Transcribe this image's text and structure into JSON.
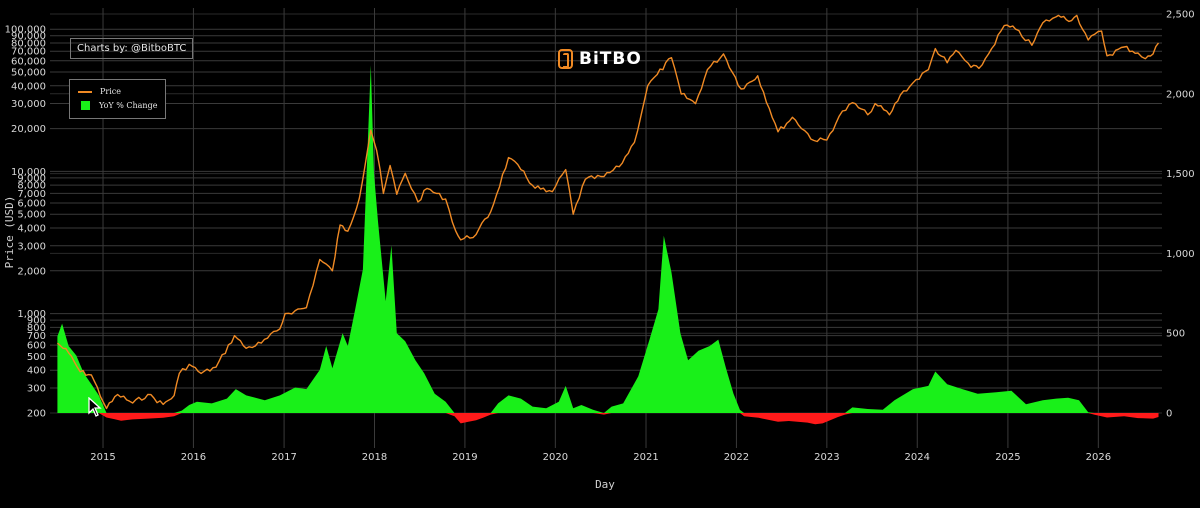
{
  "header": {
    "credit": "Charts by: @BitboBTC",
    "brand": "BiTBO"
  },
  "legend": {
    "price": "Price",
    "yoy": "YoY % Change"
  },
  "colors": {
    "background": "#000000",
    "price": "#f08a24",
    "positive": "#19f019",
    "negative": "#ff1a1a",
    "grid": "#3a3a3a"
  },
  "chart_data": {
    "type": "line",
    "title": "",
    "xlabel": "Day",
    "ylabel": "Price (USD)",
    "y2label": "",
    "x_ticks": [
      "2015",
      "2016",
      "2017",
      "2018",
      "2019",
      "2020",
      "2021",
      "2022",
      "2023",
      "2024",
      "2025",
      "2026"
    ],
    "y_scale": "log",
    "y_ticks": [
      "200",
      "300",
      "400",
      "500",
      "600",
      "700",
      "800",
      "900",
      "1,000",
      "2,000",
      "3,000",
      "4,000",
      "5,000",
      "6,000",
      "7,000",
      "8,000",
      "9,000",
      "10,000",
      "20,000",
      "30,000",
      "40,000",
      "50,000",
      "60,000",
      "70,000",
      "80,000",
      "90,000",
      "100,000"
    ],
    "y_tick_values": [
      200,
      300,
      400,
      500,
      600,
      700,
      800,
      900,
      1000,
      2000,
      3000,
      4000,
      5000,
      6000,
      7000,
      8000,
      9000,
      10000,
      20000,
      30000,
      40000,
      50000,
      60000,
      70000,
      80000,
      90000,
      100000
    ],
    "y2_ticks": [
      "0",
      "500",
      "1,000",
      "1,500",
      "2,000",
      "2,500"
    ],
    "y2_tick_values": [
      0,
      500,
      1000,
      1500,
      2000,
      2500
    ],
    "ylim": [
      200,
      130000
    ],
    "y2lim": [
      -50,
      2500
    ],
    "series": [
      {
        "name": "Price",
        "axis": "left",
        "points": [
          [
            "2014-07-01",
            620
          ],
          [
            "2014-08-15",
            530
          ],
          [
            "2014-10-01",
            390
          ],
          [
            "2014-11-15",
            370
          ],
          [
            "2015-01-15",
            215
          ],
          [
            "2015-03-01",
            270
          ],
          [
            "2015-05-01",
            235
          ],
          [
            "2015-07-01",
            270
          ],
          [
            "2015-09-01",
            230
          ],
          [
            "2015-10-15",
            265
          ],
          [
            "2015-11-05",
            380
          ],
          [
            "2015-12-15",
            440
          ],
          [
            "2016-02-01",
            380
          ],
          [
            "2016-04-01",
            420
          ],
          [
            "2016-06-15",
            700
          ],
          [
            "2016-08-01",
            570
          ],
          [
            "2016-10-01",
            620
          ],
          [
            "2016-12-15",
            780
          ],
          [
            "2017-01-05",
            1000
          ],
          [
            "2017-02-15",
            1050
          ],
          [
            "2017-04-01",
            1100
          ],
          [
            "2017-05-25",
            2400
          ],
          [
            "2017-07-15",
            2000
          ],
          [
            "2017-08-15",
            4200
          ],
          [
            "2017-09-15",
            3800
          ],
          [
            "2017-11-01",
            6500
          ],
          [
            "2017-12-17",
            19500
          ],
          [
            "2018-01-10",
            14000
          ],
          [
            "2018-02-06",
            7000
          ],
          [
            "2018-03-05",
            11000
          ],
          [
            "2018-04-01",
            6900
          ],
          [
            "2018-05-05",
            9700
          ],
          [
            "2018-06-25",
            6100
          ],
          [
            "2018-08-01",
            7600
          ],
          [
            "2018-10-15",
            6400
          ],
          [
            "2018-11-25",
            3800
          ],
          [
            "2018-12-15",
            3300
          ],
          [
            "2019-02-15",
            3600
          ],
          [
            "2019-04-15",
            5200
          ],
          [
            "2019-06-26",
            12500
          ],
          [
            "2019-08-15",
            10300
          ],
          [
            "2019-09-30",
            8000
          ],
          [
            "2019-11-25",
            7200
          ],
          [
            "2019-12-20",
            7200
          ],
          [
            "2020-02-12",
            10300
          ],
          [
            "2020-03-13",
            5000
          ],
          [
            "2020-05-01",
            8800
          ],
          [
            "2020-07-15",
            9200
          ],
          [
            "2020-09-15",
            10800
          ],
          [
            "2020-11-15",
            16000
          ],
          [
            "2021-01-08",
            40000
          ],
          [
            "2021-02-15",
            48000
          ],
          [
            "2021-04-14",
            63000
          ],
          [
            "2021-05-23",
            35000
          ],
          [
            "2021-07-20",
            30000
          ],
          [
            "2021-09-06",
            52000
          ],
          [
            "2021-11-10",
            67000
          ],
          [
            "2022-01-20",
            38000
          ],
          [
            "2022-03-28",
            47000
          ],
          [
            "2022-06-18",
            19000
          ],
          [
            "2022-08-15",
            24000
          ],
          [
            "2022-11-10",
            16500
          ],
          [
            "2023-01-01",
            16600
          ],
          [
            "2023-02-20",
            24500
          ],
          [
            "2023-04-14",
            30400
          ],
          [
            "2023-06-15",
            25000
          ],
          [
            "2023-07-15",
            30000
          ],
          [
            "2023-09-11",
            25000
          ],
          [
            "2023-10-25",
            34500
          ],
          [
            "2023-12-15",
            42000
          ],
          [
            "2024-02-15",
            52000
          ],
          [
            "2024-03-14",
            73000
          ],
          [
            "2024-05-01",
            58000
          ],
          [
            "2024-06-05",
            71000
          ],
          [
            "2024-08-05",
            54000
          ],
          [
            "2024-09-06",
            53000
          ],
          [
            "2024-10-15",
            67000
          ],
          [
            "2024-12-17",
            106000
          ],
          [
            "2025-02-01",
            100000
          ],
          [
            "2025-04-08",
            77000
          ],
          [
            "2025-05-22",
            111000
          ],
          [
            "2025-07-14",
            122000
          ],
          [
            "2025-08-14",
            123000
          ],
          [
            "2025-09-15",
            115000
          ],
          [
            "2025-10-06",
            125000
          ],
          [
            "2025-11-21",
            84000
          ],
          [
            "2026-01-14",
            97000
          ],
          [
            "2026-02-05",
            65000
          ],
          [
            "2026-04-15",
            75000
          ],
          [
            "2026-06-10",
            68000
          ],
          [
            "2026-07-10",
            62000
          ],
          [
            "2026-08-10",
            67000
          ],
          [
            "2026-09-01",
            80000
          ]
        ]
      },
      {
        "name": "YoY % Change",
        "axis": "right",
        "type": "area",
        "points": [
          [
            "2014-07-01",
            480
          ],
          [
            "2014-07-20",
            560
          ],
          [
            "2014-08-15",
            420
          ],
          [
            "2014-09-15",
            360
          ],
          [
            "2014-10-15",
            250
          ],
          [
            "2014-11-15",
            180
          ],
          [
            "2014-12-15",
            110
          ],
          [
            "2015-01-15",
            -28
          ],
          [
            "2015-02-15",
            -38
          ],
          [
            "2015-03-15",
            -48
          ],
          [
            "2015-05-01",
            -40
          ],
          [
            "2015-07-01",
            -35
          ],
          [
            "2015-09-01",
            -30
          ],
          [
            "2015-10-15",
            -20
          ],
          [
            "2015-11-15",
            15
          ],
          [
            "2015-12-15",
            50
          ],
          [
            "2016-01-15",
            70
          ],
          [
            "2016-03-15",
            60
          ],
          [
            "2016-05-15",
            90
          ],
          [
            "2016-06-20",
            150
          ],
          [
            "2016-08-01",
            110
          ],
          [
            "2016-10-15",
            80
          ],
          [
            "2016-12-15",
            110
          ],
          [
            "2017-02-15",
            160
          ],
          [
            "2017-04-01",
            150
          ],
          [
            "2017-05-25",
            270
          ],
          [
            "2017-06-20",
            420
          ],
          [
            "2017-07-15",
            280
          ],
          [
            "2017-08-25",
            500
          ],
          [
            "2017-09-15",
            420
          ],
          [
            "2017-10-15",
            650
          ],
          [
            "2017-11-15",
            900
          ],
          [
            "2017-12-17",
            2180
          ],
          [
            "2017-12-30",
            1500
          ],
          [
            "2018-01-15",
            1200
          ],
          [
            "2018-02-15",
            700
          ],
          [
            "2018-03-10",
            1050
          ],
          [
            "2018-04-01",
            500
          ],
          [
            "2018-05-05",
            450
          ],
          [
            "2018-06-15",
            330
          ],
          [
            "2018-07-20",
            250
          ],
          [
            "2018-09-01",
            120
          ],
          [
            "2018-10-15",
            70
          ],
          [
            "2018-11-20",
            -20
          ],
          [
            "2018-12-15",
            -65
          ],
          [
            "2019-01-15",
            -55
          ],
          [
            "2019-02-15",
            -45
          ],
          [
            "2019-03-15",
            -30
          ],
          [
            "2019-04-15",
            -10
          ],
          [
            "2019-05-15",
            60
          ],
          [
            "2019-06-26",
            110
          ],
          [
            "2019-08-15",
            90
          ],
          [
            "2019-10-01",
            40
          ],
          [
            "2019-11-25",
            30
          ],
          [
            "2020-01-15",
            70
          ],
          [
            "2020-02-12",
            170
          ],
          [
            "2020-03-13",
            30
          ],
          [
            "2020-04-15",
            50
          ],
          [
            "2020-06-01",
            20
          ],
          [
            "2020-07-15",
            -10
          ],
          [
            "2020-08-15",
            40
          ],
          [
            "2020-10-01",
            60
          ],
          [
            "2020-12-01",
            230
          ],
          [
            "2021-01-15",
            460
          ],
          [
            "2021-02-20",
            650
          ],
          [
            "2021-03-14",
            1110
          ],
          [
            "2021-04-14",
            880
          ],
          [
            "2021-05-20",
            500
          ],
          [
            "2021-06-20",
            330
          ],
          [
            "2021-08-01",
            390
          ],
          [
            "2021-09-15",
            420
          ],
          [
            "2021-10-20",
            460
          ],
          [
            "2021-11-20",
            280
          ],
          [
            "2021-12-20",
            120
          ],
          [
            "2022-01-15",
            20
          ],
          [
            "2022-02-01",
            -20
          ],
          [
            "2022-04-01",
            -30
          ],
          [
            "2022-06-18",
            -55
          ],
          [
            "2022-08-01",
            -50
          ],
          [
            "2022-10-15",
            -60
          ],
          [
            "2022-11-15",
            -70
          ],
          [
            "2022-12-15",
            -65
          ],
          [
            "2023-02-15",
            -25
          ],
          [
            "2023-03-15",
            -10
          ],
          [
            "2023-04-14",
            35
          ],
          [
            "2023-06-15",
            25
          ],
          [
            "2023-08-15",
            20
          ],
          [
            "2023-10-01",
            80
          ],
          [
            "2023-12-15",
            150
          ],
          [
            "2024-02-15",
            170
          ],
          [
            "2024-03-14",
            260
          ],
          [
            "2024-05-01",
            180
          ],
          [
            "2024-07-01",
            150
          ],
          [
            "2024-09-01",
            120
          ],
          [
            "2024-11-15",
            130
          ],
          [
            "2025-01-15",
            140
          ],
          [
            "2025-03-15",
            55
          ],
          [
            "2025-05-22",
            80
          ],
          [
            "2025-07-15",
            90
          ],
          [
            "2025-09-01",
            95
          ],
          [
            "2025-10-15",
            80
          ],
          [
            "2025-11-21",
            5
          ],
          [
            "2025-12-15",
            -10
          ],
          [
            "2026-02-05",
            -28
          ],
          [
            "2026-04-15",
            -20
          ],
          [
            "2026-06-10",
            -32
          ],
          [
            "2026-08-10",
            -35
          ],
          [
            "2026-09-01",
            -25
          ]
        ]
      }
    ]
  }
}
